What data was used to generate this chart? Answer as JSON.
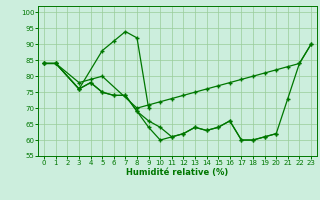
{
  "xlabel": "Humidité relative (%)",
  "bg_color": "#cceedd",
  "grid_color": "#99cc99",
  "line_color": "#007700",
  "xlim": [
    -0.5,
    23.5
  ],
  "ylim": [
    55,
    102
  ],
  "yticks": [
    55,
    60,
    65,
    70,
    75,
    80,
    85,
    90,
    95,
    100
  ],
  "xticks": [
    0,
    1,
    2,
    3,
    4,
    5,
    6,
    7,
    8,
    9,
    10,
    11,
    12,
    13,
    14,
    15,
    16,
    17,
    18,
    19,
    20,
    21,
    22,
    23
  ],
  "s1x": [
    0,
    1,
    3,
    5,
    6,
    7,
    8,
    9
  ],
  "s1y": [
    84,
    84,
    76,
    88,
    91,
    94,
    92,
    70
  ],
  "s2x": [
    0,
    1,
    3,
    4,
    5,
    8,
    9,
    10,
    11,
    12,
    13,
    14,
    15,
    16,
    17,
    18,
    19,
    20,
    21,
    22,
    23
  ],
  "s2y": [
    84,
    84,
    78,
    79,
    80,
    70,
    71,
    72,
    73,
    74,
    75,
    76,
    77,
    78,
    79,
    80,
    81,
    82,
    83,
    84,
    90
  ],
  "s3x": [
    0,
    1,
    3,
    4,
    5,
    6,
    7,
    8,
    9,
    10,
    11,
    12,
    13,
    14,
    15,
    16,
    17,
    18,
    19,
    20
  ],
  "s3y": [
    84,
    84,
    76,
    78,
    75,
    74,
    74,
    69,
    66,
    64,
    61,
    62,
    64,
    63,
    64,
    66,
    60,
    60,
    61,
    62
  ],
  "s4x": [
    0,
    1,
    3,
    4,
    5,
    6,
    7,
    8,
    9,
    10,
    11,
    12,
    13,
    14,
    15,
    16,
    17,
    18,
    19,
    20,
    21,
    22,
    23
  ],
  "s4y": [
    84,
    84,
    76,
    78,
    75,
    74,
    74,
    69,
    64,
    60,
    61,
    62,
    64,
    63,
    64,
    66,
    60,
    60,
    61,
    62,
    73,
    84,
    90
  ]
}
